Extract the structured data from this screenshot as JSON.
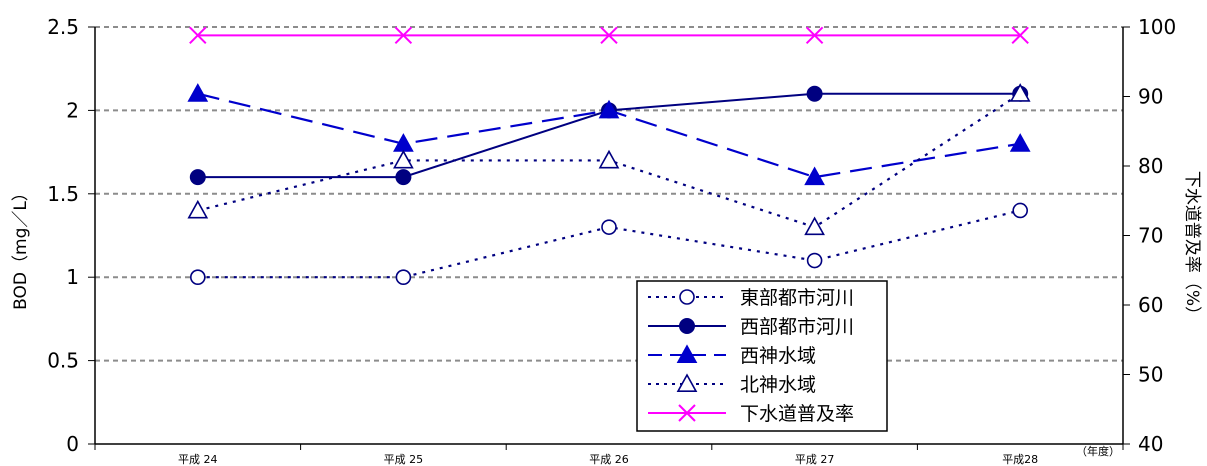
{
  "chart_data": {
    "type": "line",
    "categories": [
      "平成 24",
      "平成 25",
      "平成 26",
      "平成 27",
      "平成28"
    ],
    "x_unit_label": "（年度）",
    "ylabel": "BOD（mg／L）",
    "ylabel_right": "下水道普及率（%）",
    "ylim": [
      0,
      2.5
    ],
    "yticks": [
      "0",
      "0.5",
      "1",
      "1.5",
      "2",
      "2.5"
    ],
    "ylim_right": [
      40,
      100
    ],
    "yticks_right": [
      "40",
      "50",
      "60",
      "70",
      "80",
      "90",
      "100"
    ],
    "grid": true,
    "legend_position": "lower-right",
    "series": [
      {
        "name": "東部都市河川",
        "axis": "left",
        "line": "dotted",
        "marker": "circle-open",
        "color": "#000080",
        "values": [
          1.0,
          1.0,
          1.3,
          1.1,
          1.4
        ]
      },
      {
        "name": "西部都市河川",
        "axis": "left",
        "line": "solid",
        "marker": "circle-filled",
        "color": "#000080",
        "values": [
          1.6,
          1.6,
          2.0,
          2.1,
          2.1
        ]
      },
      {
        "name": "西神水域",
        "axis": "left",
        "line": "dashed",
        "marker": "triangle-filled",
        "color": "#0000cc",
        "values": [
          2.1,
          1.8,
          2.0,
          1.6,
          1.8
        ]
      },
      {
        "name": "北神水域",
        "axis": "left",
        "line": "dotted",
        "marker": "triangle-open",
        "color": "#000080",
        "values": [
          1.4,
          1.7,
          1.7,
          1.3,
          2.1
        ]
      },
      {
        "name": "下水道普及率",
        "axis": "right",
        "line": "solid",
        "marker": "x",
        "color": "#ff00ff",
        "values": [
          98.8,
          98.8,
          98.8,
          98.8,
          98.8
        ]
      }
    ]
  }
}
